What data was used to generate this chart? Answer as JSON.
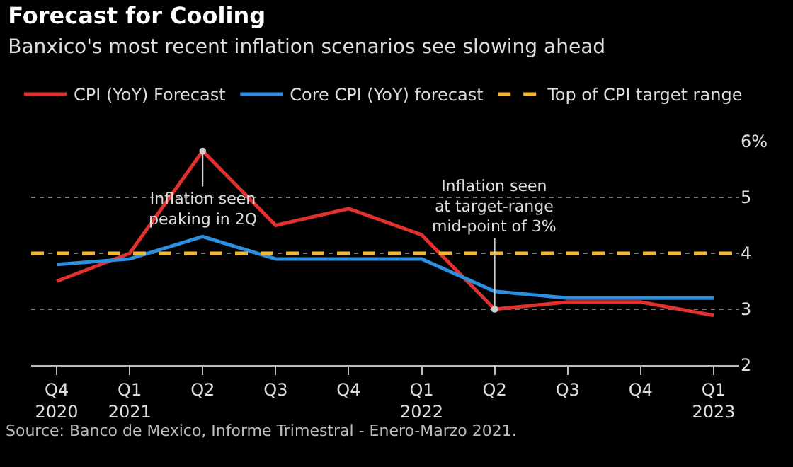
{
  "chart_data": {
    "type": "line",
    "title": "Forecast for Cooling",
    "subtitle": "Banxico's most recent inflation scenarios see slowing ahead",
    "categories": [
      "Q4\n2020",
      "Q1\n2021",
      "Q2",
      "Q3",
      "Q4",
      "Q1\n2022",
      "Q2",
      "Q3",
      "Q4",
      "Q1\n2023"
    ],
    "series": [
      {
        "name": "CPI (YoY) Forecast",
        "color": "#e0312f",
        "values": [
          3.5,
          4.0,
          5.83,
          4.5,
          4.8,
          4.33,
          3.0,
          3.13,
          3.13,
          2.89
        ]
      },
      {
        "name": "Core CPI (YoY) forecast",
        "color": "#2d8fe0",
        "values": [
          3.8,
          3.9,
          4.3,
          3.9,
          3.9,
          3.9,
          3.32,
          3.2,
          3.2,
          3.2
        ]
      }
    ],
    "ref_lines": [
      {
        "axis": "y",
        "value": 4,
        "label": "Top of CPI target range",
        "color": "#f5b731",
        "line_style": "dashed"
      }
    ],
    "ylim": [
      2,
      6
    ],
    "yticks": [
      2,
      3,
      4,
      5,
      {
        "value": 6,
        "label": "6%"
      }
    ],
    "grid": "y",
    "legend": "top left",
    "line_style": "solid",
    "marker": "none",
    "annotations": [
      {
        "text": "Inflation seen\npeaking in 2Q",
        "y": 5.83
      },
      {
        "text": "Inflation seen\nat target-range\nmid-point of 3%",
        "y": 3.0
      },
      "Source: Banco de Mexico, Informe Trimestral - Enero-Marzo 2021."
    ]
  }
}
